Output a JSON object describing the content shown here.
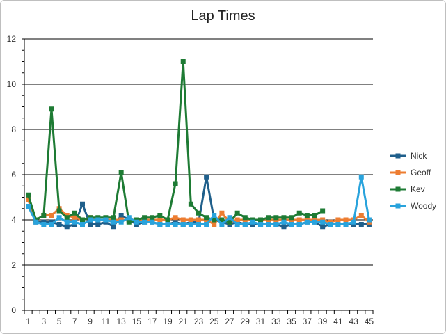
{
  "chart_data": {
    "type": "line",
    "title": "Lap Times",
    "xlabel": "",
    "ylabel": "",
    "ylim": [
      0,
      12
    ],
    "yticks": [
      0,
      2,
      4,
      6,
      8,
      10,
      12
    ],
    "x": [
      1,
      2,
      3,
      4,
      5,
      6,
      7,
      8,
      9,
      10,
      11,
      12,
      13,
      14,
      15,
      16,
      17,
      18,
      19,
      20,
      21,
      22,
      23,
      24,
      25,
      26,
      27,
      28,
      29,
      30,
      31,
      32,
      33,
      34,
      35,
      36,
      37,
      38,
      39,
      40,
      41,
      42,
      43,
      44,
      45
    ],
    "xtick_labels": [
      "1",
      "3",
      "5",
      "7",
      "9",
      "11",
      "13",
      "15",
      "17",
      "19",
      "21",
      "23",
      "25",
      "27",
      "29",
      "31",
      "33",
      "35",
      "37",
      "39",
      "41",
      "43",
      "45"
    ],
    "grid": "horizontal",
    "legend_position": "right",
    "series": [
      {
        "name": "Nick",
        "color": "#1f5f8b",
        "values": [
          4.9,
          3.9,
          3.9,
          3.9,
          3.8,
          3.7,
          3.8,
          4.7,
          3.8,
          3.8,
          3.9,
          3.7,
          4.2,
          4.0,
          3.8,
          3.9,
          3.9,
          3.8,
          3.8,
          3.9,
          3.8,
          3.9,
          3.9,
          5.9,
          4.0,
          3.9,
          3.8,
          3.9,
          3.8,
          3.8,
          3.8,
          3.8,
          3.8,
          3.7,
          3.8,
          3.8,
          3.9,
          3.9,
          3.7,
          3.8,
          3.8,
          3.8,
          3.8,
          3.8,
          3.8
        ]
      },
      {
        "name": "Geoff",
        "color": "#ed7d31",
        "values": [
          4.9,
          4.0,
          4.2,
          4.2,
          4.5,
          4.2,
          4.1,
          4.0,
          4.1,
          4.0,
          4.0,
          4.0,
          4.0,
          4.0,
          4.0,
          4.0,
          4.0,
          4.0,
          4.0,
          4.1,
          4.0,
          4.0,
          4.0,
          4.0,
          3.8,
          4.3,
          3.9,
          4.0,
          4.0,
          4.0,
          4.0,
          4.0,
          4.0,
          4.0,
          4.0,
          4.0,
          4.0,
          4.0,
          4.0,
          3.9,
          4.0,
          4.0,
          4.0,
          4.2,
          3.9
        ]
      },
      {
        "name": "Kev",
        "color": "#1e7b34",
        "values": [
          5.1,
          4.0,
          4.2,
          8.9,
          4.4,
          4.1,
          4.3,
          4.0,
          4.1,
          4.1,
          4.1,
          4.1,
          6.1,
          3.9,
          4.0,
          4.1,
          4.1,
          4.2,
          4.0,
          5.6,
          11.0,
          4.7,
          4.3,
          4.1,
          4.0,
          4.0,
          3.9,
          4.3,
          4.1,
          4.0,
          4.0,
          4.1,
          4.1,
          4.1,
          4.1,
          4.3,
          4.2,
          4.2,
          4.4,
          null,
          null,
          null,
          null,
          null,
          null
        ]
      },
      {
        "name": "Woody",
        "color": "#29a3dc",
        "values": [
          4.6,
          3.9,
          3.8,
          3.8,
          4.1,
          3.9,
          3.9,
          3.8,
          4.0,
          4.0,
          4.0,
          3.9,
          3.9,
          4.1,
          3.9,
          3.9,
          3.9,
          3.8,
          3.8,
          3.8,
          3.8,
          3.8,
          3.8,
          3.8,
          4.2,
          3.8,
          4.1,
          3.8,
          3.8,
          3.9,
          3.8,
          3.8,
          3.8,
          3.9,
          3.8,
          3.8,
          3.9,
          3.9,
          3.9,
          3.8,
          3.8,
          3.8,
          3.9,
          5.9,
          4.0
        ]
      }
    ]
  }
}
